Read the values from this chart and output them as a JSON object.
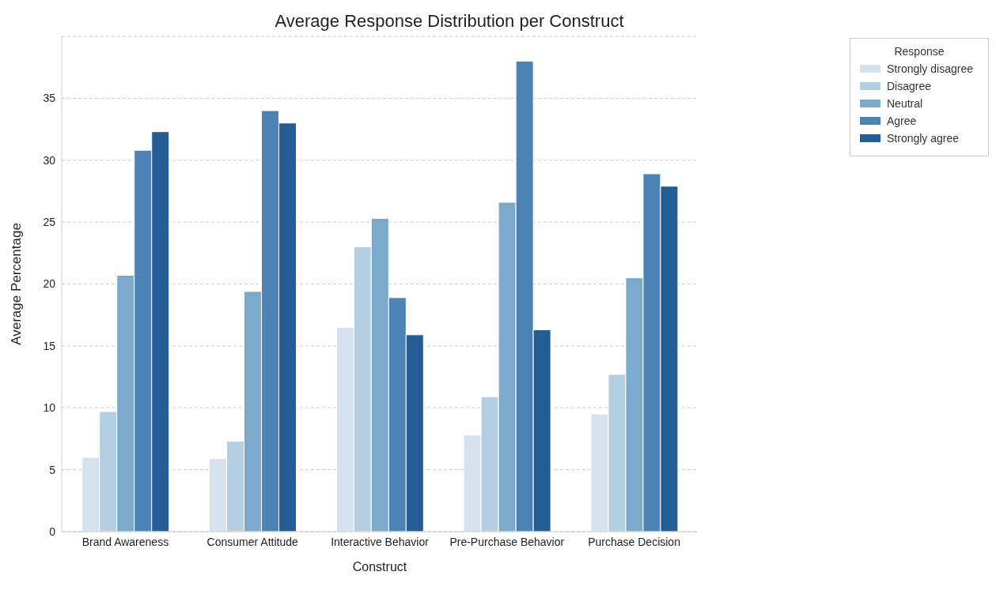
{
  "chart_data": {
    "type": "bar",
    "title": "Average Response Distribution per Construct",
    "xlabel": "Construct",
    "ylabel": "Average Percentage",
    "legend_title": "Response",
    "categories": [
      "Brand Awareness",
      "Consumer Attitude",
      "Interactive Behavior",
      "Pre-Purchase Behavior",
      "Purchase Decision"
    ],
    "series": [
      {
        "name": "Strongly disagree",
        "color": "#d6e3ef",
        "values": [
          6.0,
          5.9,
          16.5,
          7.8,
          9.5
        ]
      },
      {
        "name": "Disagree",
        "color": "#b5cfe2",
        "values": [
          9.7,
          7.3,
          23.0,
          10.9,
          12.7
        ]
      },
      {
        "name": "Neutral",
        "color": "#7aa9cc",
        "values": [
          20.7,
          19.4,
          25.3,
          26.6,
          20.5
        ]
      },
      {
        "name": "Agree",
        "color": "#4a83b4",
        "values": [
          30.8,
          34.0,
          18.9,
          38.0,
          28.9
        ]
      },
      {
        "name": "Strongly agree",
        "color": "#245d94",
        "values": [
          32.3,
          33.0,
          15.9,
          16.3,
          27.9
        ]
      }
    ],
    "ylim": [
      0,
      40
    ],
    "yticks": [
      0,
      5,
      10,
      15,
      20,
      25,
      30,
      35
    ],
    "grid": "y",
    "legend": "top right"
  }
}
